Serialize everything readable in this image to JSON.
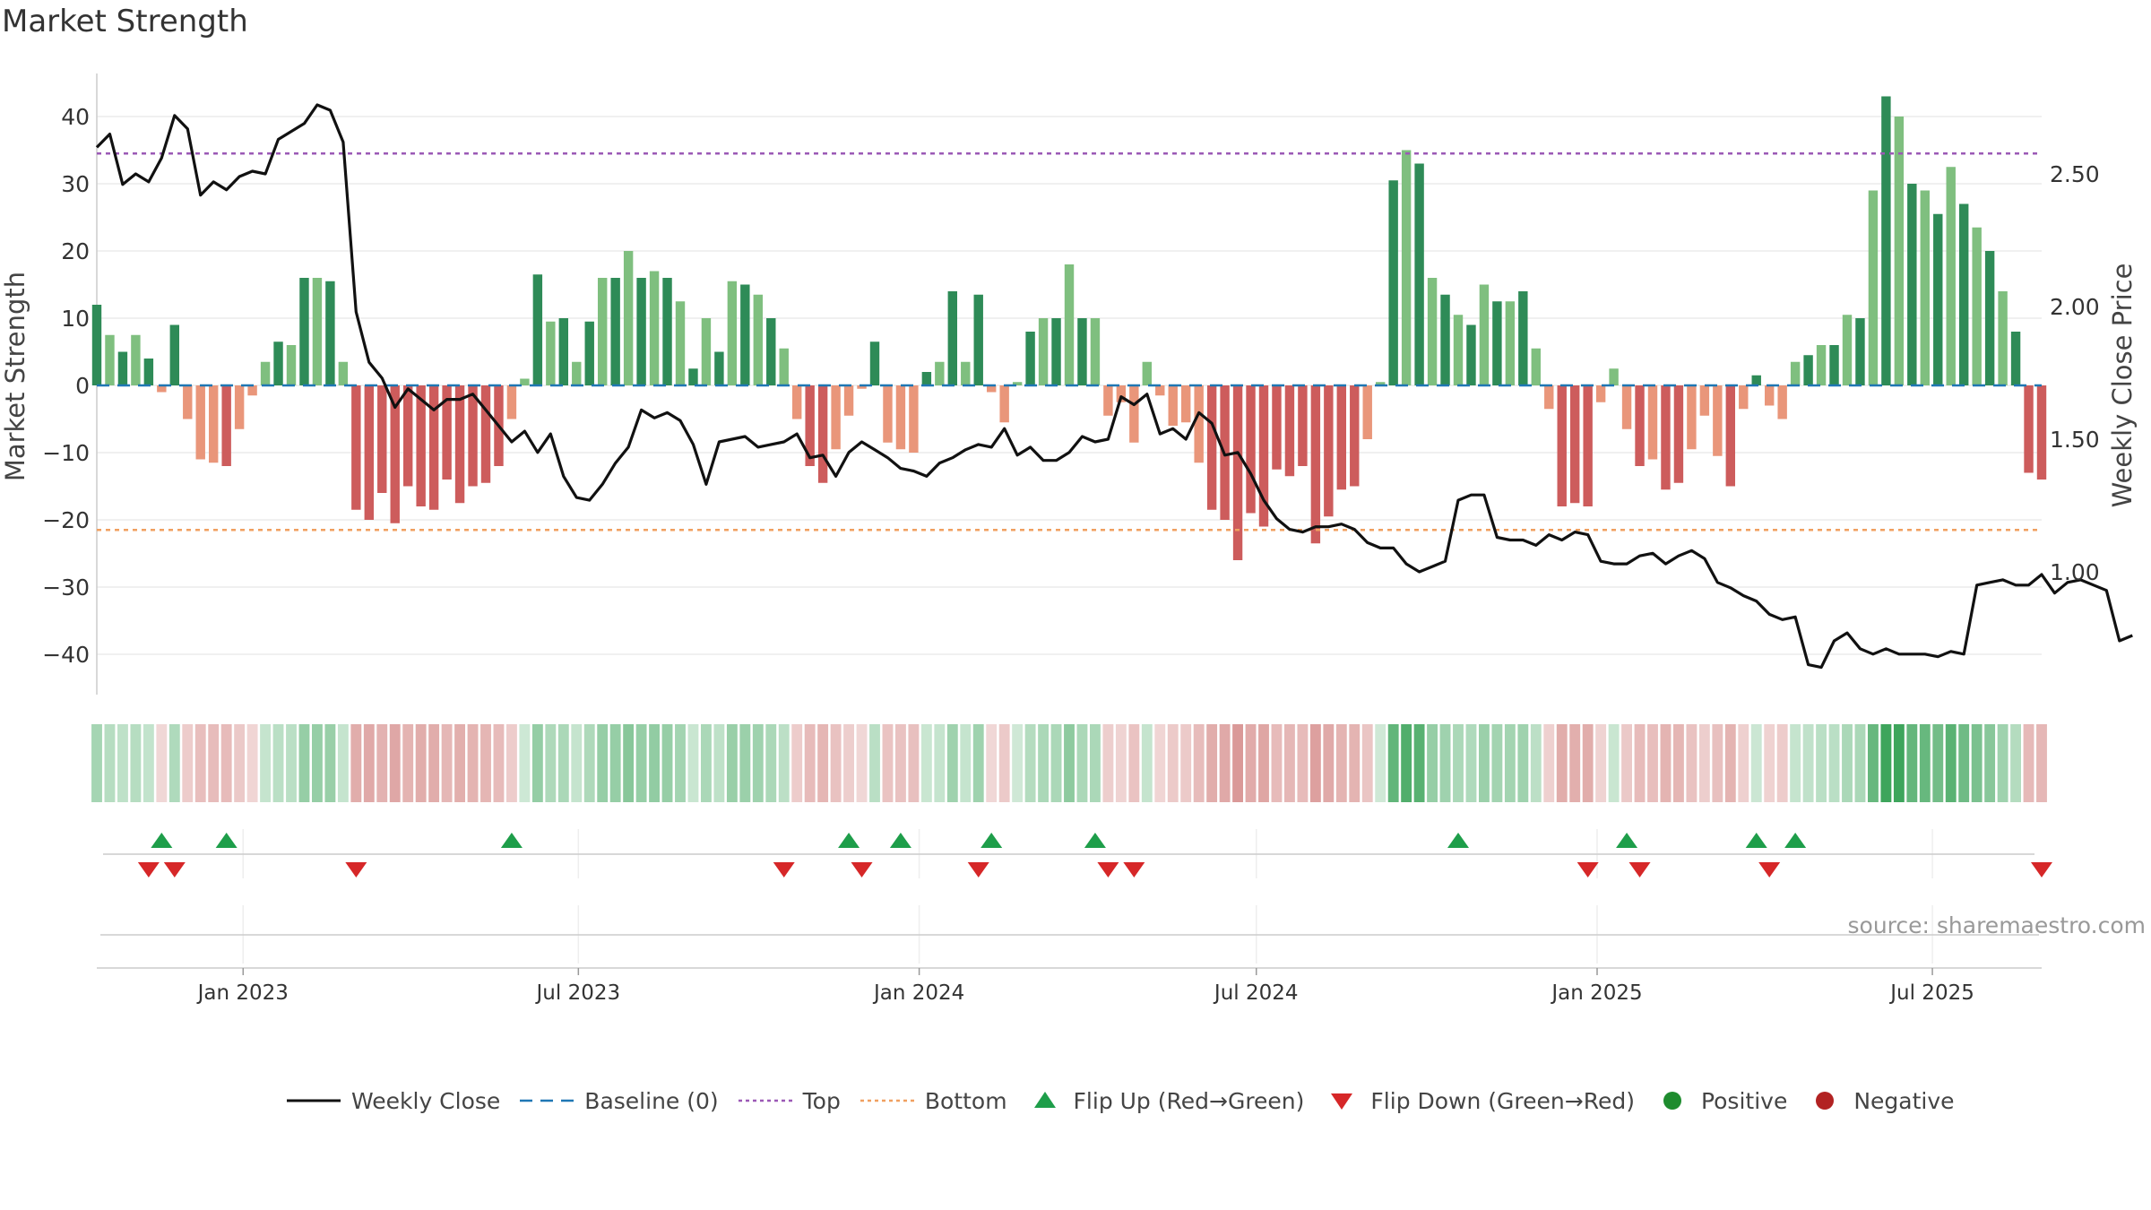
{
  "page": {
    "title": "Market Strength",
    "source": "source: sharemaestro.com"
  },
  "axes": {
    "left_label": "Market Strength",
    "right_label": "Weekly Close Price",
    "left_ticks": [
      40,
      30,
      20,
      10,
      0,
      -10,
      -20,
      -30,
      -40
    ],
    "left_tick_labels": [
      "40",
      "30",
      "20",
      "10",
      "0",
      "−10",
      "−20",
      "−30",
      "−40"
    ],
    "right_ticks": [
      2.5,
      2.0,
      1.5,
      1.0
    ],
    "right_tick_labels": [
      "2.50",
      "2.00",
      "1.50",
      "1.00"
    ],
    "x_tick_labels": [
      "Jan 2023",
      "Jul 2023",
      "Jan 2024",
      "Jul 2024",
      "Jan 2025",
      "Jul 2025"
    ]
  },
  "legend": [
    {
      "key": "weekly_close",
      "label": "Weekly Close"
    },
    {
      "key": "baseline",
      "label": "Baseline (0)"
    },
    {
      "key": "top",
      "label": "Top"
    },
    {
      "key": "bottom",
      "label": "Bottom"
    },
    {
      "key": "flip_up",
      "label": "Flip Up (Red→Green)"
    },
    {
      "key": "flip_down",
      "label": "Flip Down (Green→Red)"
    },
    {
      "key": "positive",
      "label": "Positive"
    },
    {
      "key": "negative",
      "label": "Negative"
    }
  ],
  "colors": {
    "pos_dark": "#2e8b57",
    "pos_light": "#7fbf7f",
    "neg_dark": "#cd5c5c",
    "neg_light": "#e9967a",
    "line": "#111111",
    "top": "#9b59b6",
    "bottom": "#f0a060",
    "baseline": "#1f77b4",
    "flip_up": "#1e9e4a",
    "flip_down": "#d62728",
    "legend_pos": "#1e8c2e",
    "legend_neg": "#b22222",
    "grid": "#e8e8e8",
    "axis": "#cccccc"
  },
  "chart_data": {
    "type": "bar",
    "x_start": "2022-10-14",
    "week_days": 7,
    "date_ticks": [
      "2023-01-01",
      "2023-07-01",
      "2024-01-01",
      "2024-07-01",
      "2025-01-01",
      "2025-07-01"
    ],
    "ylim": [
      -46,
      46
    ],
    "y2lim": [
      0.58,
      2.92
    ],
    "top_level": 34.5,
    "bottom_level": -21.5,
    "strength": [
      12,
      7.5,
      5,
      7.5,
      4,
      -1,
      9,
      -5,
      -11,
      -11.5,
      -12,
      -6.5,
      -1.5,
      3.5,
      6.5,
      6,
      16,
      16,
      15.5,
      3.5,
      -18.5,
      -20,
      -16,
      -20.5,
      -15,
      -18,
      -18.5,
      -14,
      -17.5,
      -15,
      -14.5,
      -12,
      -5,
      1,
      16.5,
      9.5,
      10,
      3.5,
      9.5,
      16,
      16,
      20,
      16,
      17,
      16,
      12.5,
      2.5,
      10,
      5,
      15.5,
      15,
      13.5,
      10,
      5.5,
      -5,
      -12,
      -14.5,
      -9.5,
      -4.5,
      -0.5,
      6.5,
      -8.5,
      -9.5,
      -10,
      2,
      3.5,
      14,
      3.5,
      13.5,
      -1,
      -5.5,
      0.5,
      8,
      10,
      10,
      18,
      10,
      10,
      -4.5,
      -2.5,
      -8.5,
      3.5,
      -1.5,
      -6,
      -5.5,
      -11.5,
      -18.5,
      -20,
      -26,
      -19,
      -21,
      -12.5,
      -13.5,
      -12,
      -23.5,
      -19.5,
      -15.5,
      -15,
      -8,
      0.5,
      30.5,
      35,
      33,
      16,
      13.5,
      10.5,
      9,
      15,
      12.5,
      12.5,
      14,
      5.5,
      -3.5,
      -18,
      -17.5,
      -18,
      -2.5,
      2.5,
      -6.5,
      -12,
      -11,
      -15.5,
      -14.5,
      -9.5,
      -4.5,
      -10.5,
      -15,
      -3.5,
      1.5,
      -3,
      -5,
      3.5,
      4.5,
      6,
      6,
      10.5,
      10,
      29,
      43,
      40,
      30,
      29,
      25.5,
      32.5,
      27,
      23.5,
      20,
      14,
      8,
      -13,
      -14
    ],
    "close": [
      2.6,
      2.65,
      2.46,
      2.5,
      2.47,
      2.56,
      2.72,
      2.67,
      2.42,
      2.47,
      2.44,
      2.49,
      2.51,
      2.5,
      2.63,
      2.66,
      2.69,
      2.76,
      2.74,
      2.62,
      1.98,
      1.79,
      1.73,
      1.62,
      1.69,
      1.65,
      1.61,
      1.65,
      1.65,
      1.67,
      1.61,
      1.55,
      1.49,
      1.53,
      1.45,
      1.52,
      1.36,
      1.28,
      1.27,
      1.33,
      1.41,
      1.47,
      1.61,
      1.58,
      1.6,
      1.57,
      1.48,
      1.33,
      1.49,
      1.5,
      1.51,
      1.47,
      1.48,
      1.49,
      1.52,
      1.43,
      1.44,
      1.36,
      1.45,
      1.49,
      1.46,
      1.43,
      1.39,
      1.38,
      1.36,
      1.41,
      1.43,
      1.46,
      1.48,
      1.47,
      1.54,
      1.44,
      1.47,
      1.42,
      1.42,
      1.45,
      1.51,
      1.49,
      1.5,
      1.66,
      1.63,
      1.67,
      1.52,
      1.54,
      1.5,
      1.6,
      1.56,
      1.44,
      1.45,
      1.37,
      1.27,
      1.2,
      1.16,
      1.15,
      1.17,
      1.17,
      1.18,
      1.16,
      1.11,
      1.09,
      1.09,
      1.03,
      1.0,
      1.02,
      1.04,
      1.27,
      1.29,
      1.29,
      1.13,
      1.12,
      1.12,
      1.1,
      1.14,
      1.12,
      1.15,
      1.14,
      1.04,
      1.03,
      1.03,
      1.06,
      1.07,
      1.03,
      1.06,
      1.08,
      1.05,
      0.96,
      0.94,
      0.91,
      0.89,
      0.84,
      0.82,
      0.83,
      0.65,
      0.64,
      0.74,
      0.77,
      0.71,
      0.69,
      0.71,
      0.69,
      0.69,
      0.69,
      0.68,
      0.7,
      0.69,
      0.95,
      0.96,
      0.97,
      0.95,
      0.95,
      0.99,
      0.92,
      0.96,
      0.97,
      0.95,
      0.93,
      0.74,
      0.76
    ],
    "flips": [
      {
        "date": "2022-11-11",
        "dir": "down"
      },
      {
        "date": "2022-11-18",
        "dir": "up"
      },
      {
        "date": "2022-11-25",
        "dir": "down"
      },
      {
        "date": "2022-12-23",
        "dir": "up"
      },
      {
        "date": "2023-03-03",
        "dir": "down"
      },
      {
        "date": "2023-05-26",
        "dir": "up"
      },
      {
        "date": "2023-10-20",
        "dir": "down"
      },
      {
        "date": "2023-11-24",
        "dir": "up"
      },
      {
        "date": "2023-12-01",
        "dir": "down"
      },
      {
        "date": "2023-12-22",
        "dir": "up"
      },
      {
        "date": "2024-02-02",
        "dir": "down"
      },
      {
        "date": "2024-02-09",
        "dir": "up"
      },
      {
        "date": "2024-04-05",
        "dir": "up"
      },
      {
        "date": "2024-04-12",
        "dir": "down"
      },
      {
        "date": "2024-04-26",
        "dir": "down"
      },
      {
        "date": "2024-10-18",
        "dir": "up"
      },
      {
        "date": "2024-12-27",
        "dir": "down"
      },
      {
        "date": "2025-01-17",
        "dir": "up"
      },
      {
        "date": "2025-01-24",
        "dir": "down"
      },
      {
        "date": "2025-03-28",
        "dir": "up"
      },
      {
        "date": "2025-04-04",
        "dir": "down"
      },
      {
        "date": "2025-04-18",
        "dir": "up"
      },
      {
        "date": "2025-08-29",
        "dir": "down"
      }
    ]
  }
}
